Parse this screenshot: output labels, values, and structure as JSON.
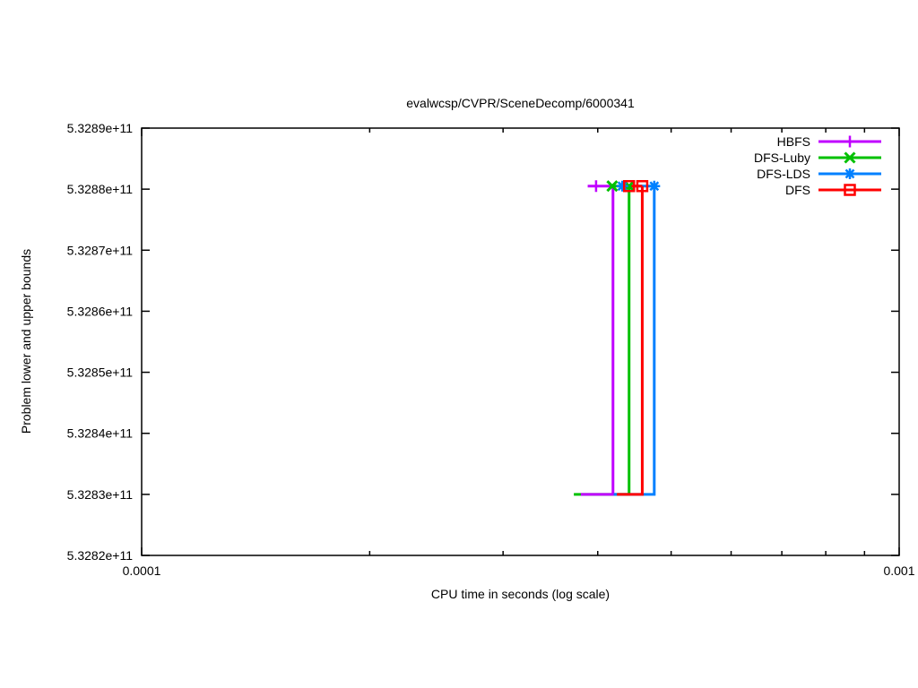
{
  "chart": {
    "title": "evalwcsp/CVPR/SceneDecomp/6000341",
    "xlabel": "CPU time in seconds (log scale)",
    "ylabel": "Problem lower and upper bounds"
  },
  "chart_data": {
    "type": "line",
    "title": "evalwcsp/CVPR/SceneDecomp/6000341",
    "xlabel": "CPU time in seconds (log scale)",
    "ylabel": "Problem lower and upper bounds",
    "x_scale": "log",
    "xlim": [
      0.0001,
      0.001
    ],
    "ylim": [
      532820000000,
      532890000000
    ],
    "grid": false,
    "legend_position": "top-right",
    "x_ticks": [
      {
        "v": 0.0001,
        "label": "0.0001"
      },
      {
        "v": 0.001,
        "label": "0.001"
      }
    ],
    "x_minor_ticks": [
      0.0002,
      0.0003,
      0.0004,
      0.0005,
      0.0006,
      0.0007,
      0.0008,
      0.0009
    ],
    "y_ticks": [
      {
        "v": 532820000000,
        "label": "5.3282e+11"
      },
      {
        "v": 532830000000,
        "label": "5.3283e+11"
      },
      {
        "v": 532840000000,
        "label": "5.3284e+11"
      },
      {
        "v": 532850000000,
        "label": "5.3285e+11"
      },
      {
        "v": 532860000000,
        "label": "5.3286e+11"
      },
      {
        "v": 532870000000,
        "label": "5.3287e+11"
      },
      {
        "v": 532880000000,
        "label": "5.3288e+11"
      },
      {
        "v": 532890000000,
        "label": "5.3289e+11"
      }
    ],
    "lower_bound_value": 532830000000,
    "upper_bound_value": 532880500000,
    "series": [
      {
        "name": "HBFS",
        "color": "#c000ff",
        "marker": "plus",
        "lower_path": [
          [
            0.00038,
            532830000000
          ],
          [
            0.000419,
            532830000000
          ],
          [
            0.000419,
            532880500000
          ]
        ],
        "upper_path": [
          [
            0.000388,
            532880500000
          ],
          [
            0.000419,
            532880500000
          ]
        ],
        "markers": [
          [
            0.000398,
            532880500000
          ]
        ]
      },
      {
        "name": "DFS-Luby",
        "color": "#00c000",
        "marker": "cross",
        "lower_path": [
          [
            0.000372,
            532830000000
          ],
          [
            0.00044,
            532830000000
          ],
          [
            0.00044,
            532880500000
          ]
        ],
        "upper_path": [
          [
            0.000418,
            532880500000
          ],
          [
            0.00044,
            532880500000
          ]
        ],
        "markers": [
          [
            0.000418,
            532880500000
          ],
          [
            0.00044,
            532880500000
          ]
        ]
      },
      {
        "name": "DFS-LDS",
        "color": "#0080ff",
        "marker": "asterisk",
        "lower_path": [
          [
            0.00042,
            532830000000
          ],
          [
            0.000475,
            532830000000
          ],
          [
            0.000475,
            532880500000
          ]
        ],
        "upper_path": [
          [
            0.000431,
            532880500000
          ],
          [
            0.000475,
            532880500000
          ]
        ],
        "markers": [
          [
            0.000431,
            532880500000
          ],
          [
            0.000475,
            532880500000
          ]
        ]
      },
      {
        "name": "DFS",
        "color": "#ff0000",
        "marker": "square-open",
        "lower_path": [
          [
            0.000424,
            532830000000
          ],
          [
            0.000458,
            532830000000
          ],
          [
            0.000458,
            532880500000
          ]
        ],
        "upper_path": [
          [
            0.00044,
            532880500000
          ],
          [
            0.000458,
            532880500000
          ]
        ],
        "markers": [
          [
            0.00044,
            532880500000
          ],
          [
            0.000458,
            532880500000
          ]
        ]
      }
    ]
  },
  "legend": {
    "entries": [
      {
        "label": "HBFS"
      },
      {
        "label": "DFS-Luby"
      },
      {
        "label": "DFS-LDS"
      },
      {
        "label": "DFS"
      }
    ]
  }
}
